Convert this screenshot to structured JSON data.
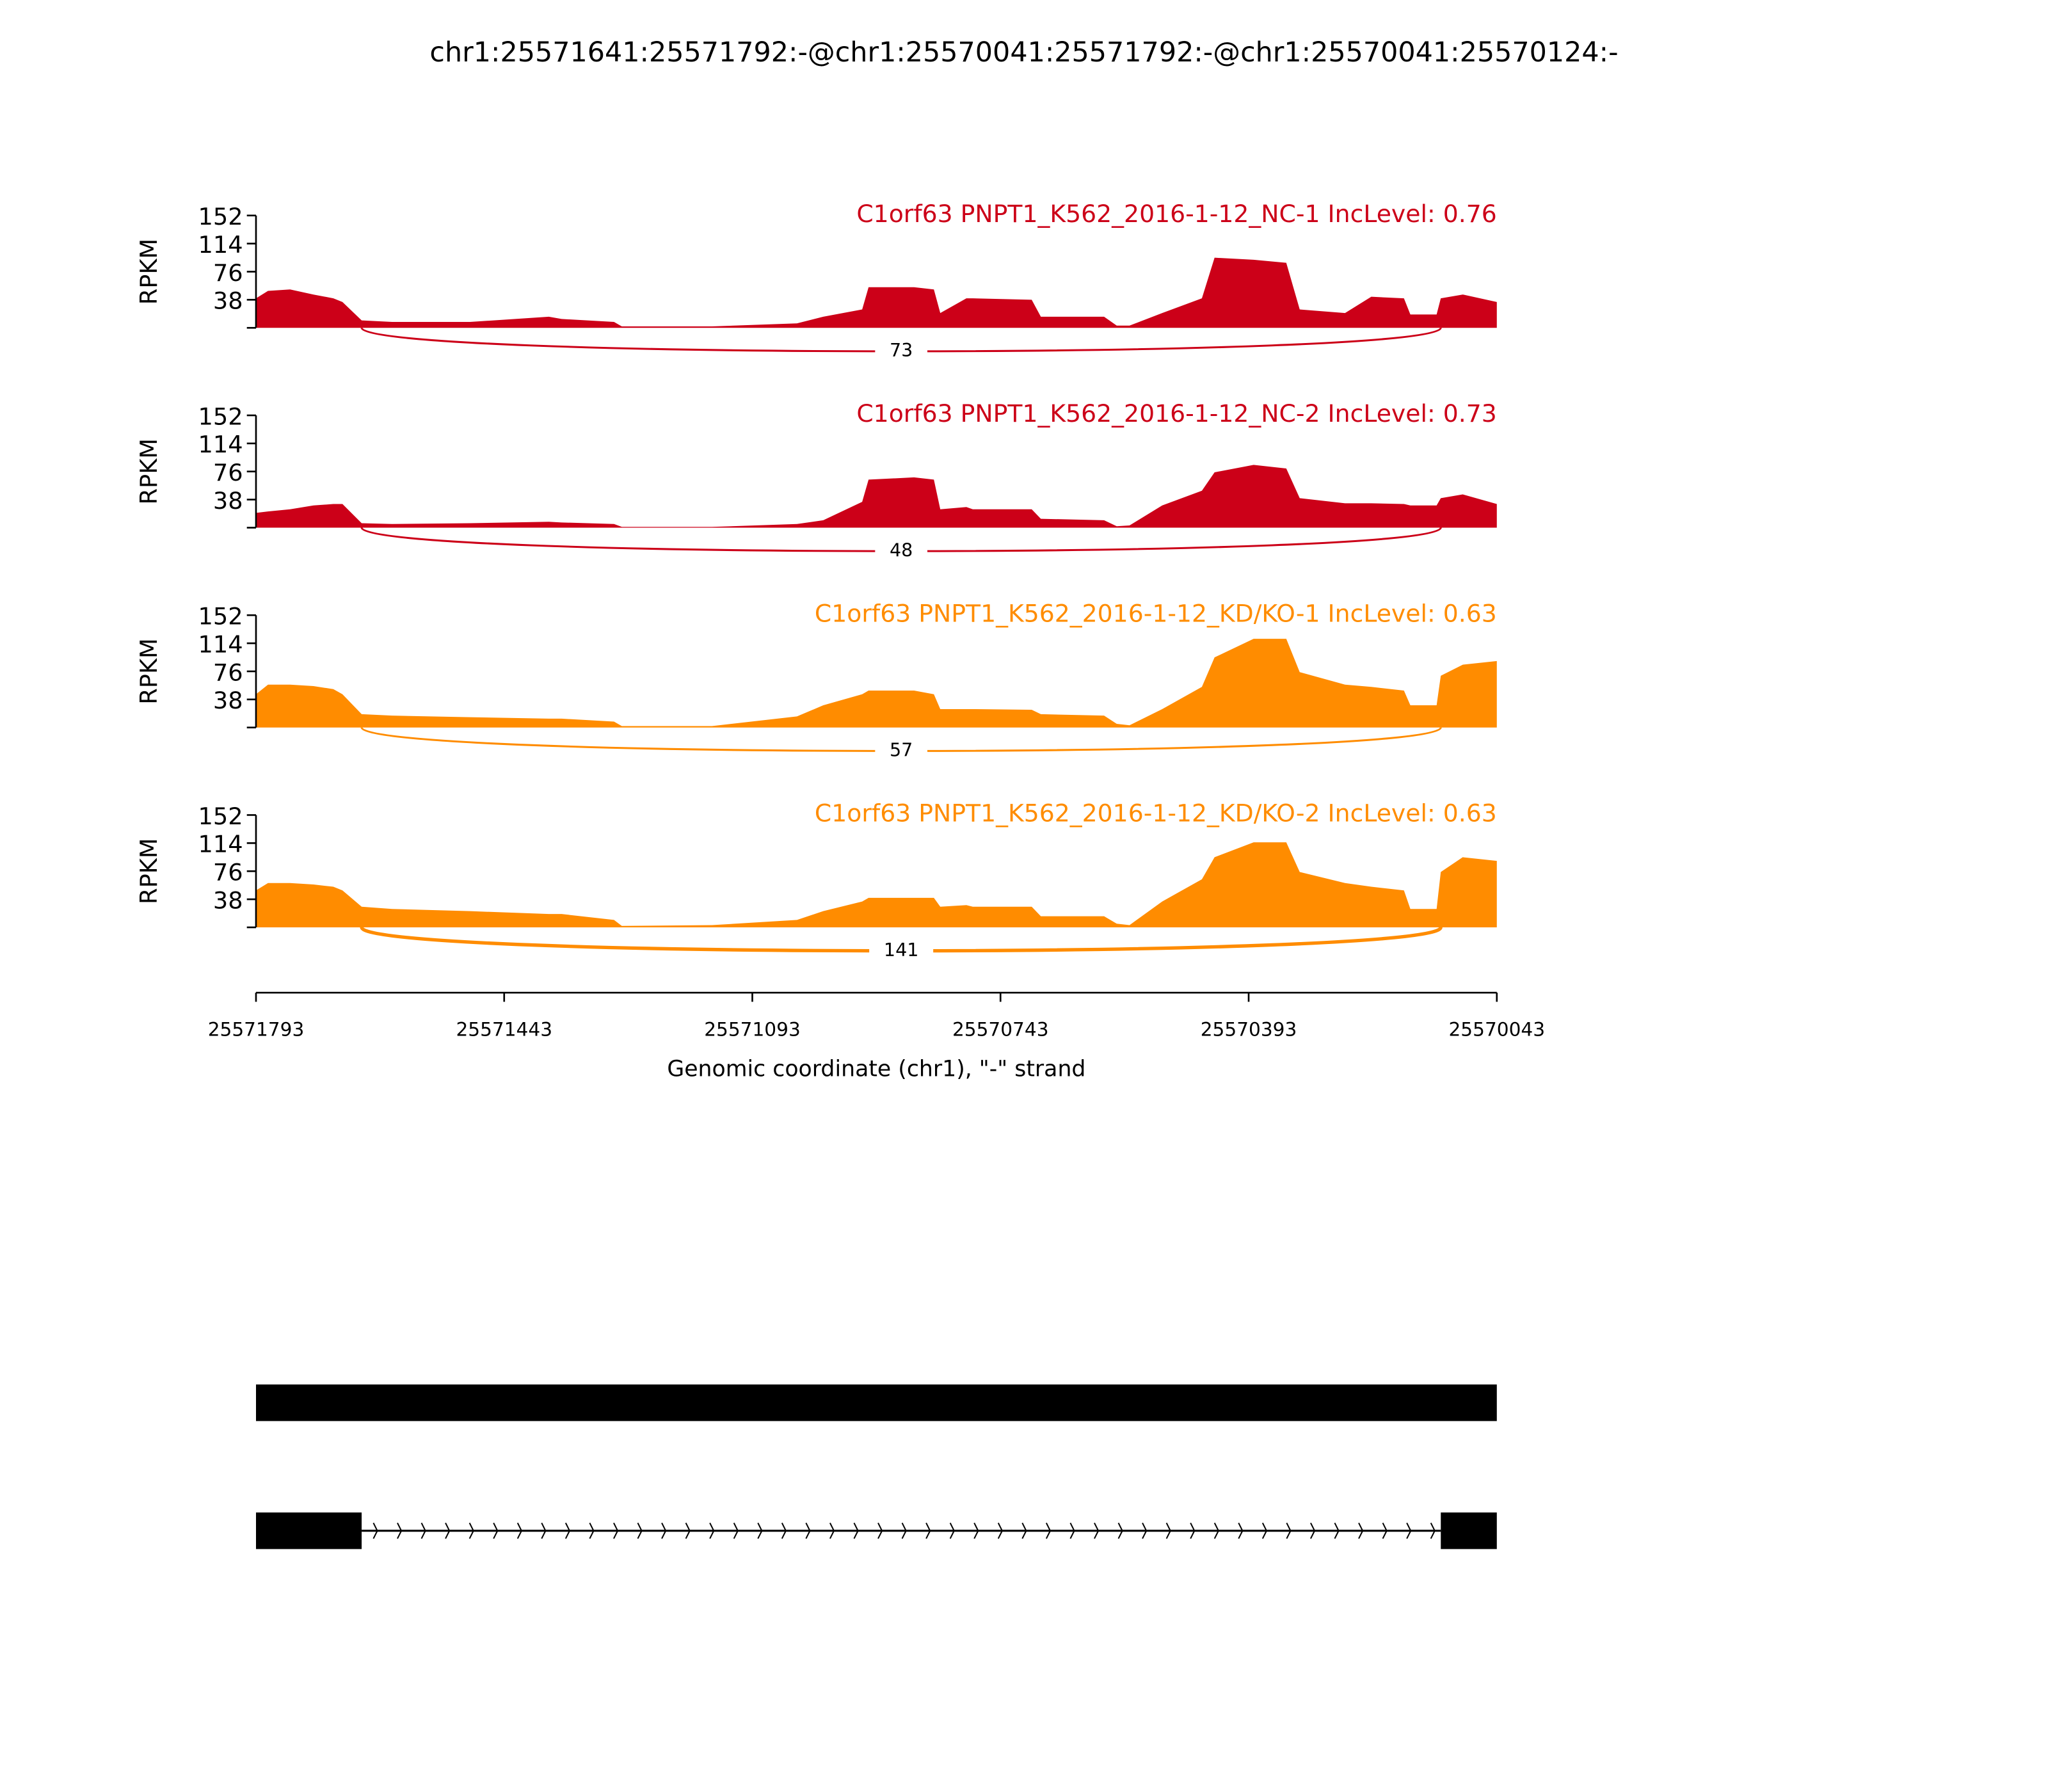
{
  "chart_data": {
    "type": "area",
    "title": "chr1:25571641:25571792:-@chr1:25570041:25571792:-@chr1:25570041:25570124:-",
    "xlabel": "Genomic coordinate (chr1), \"-\" strand",
    "ylabel": "RPKM",
    "xlim": [
      25571793,
      25570043
    ],
    "x_ticks": [
      "25571793",
      "25571443",
      "25571093",
      "25570743",
      "25570393",
      "25570043"
    ],
    "ylim": [
      0,
      152
    ],
    "y_ticks": [
      "152",
      "114",
      "76",
      "38"
    ],
    "x": [
      25571793,
      25571776,
      25571745,
      25571712,
      25571684,
      25571671,
      25571644,
      25571601,
      25571491,
      25571380,
      25571362,
      25571288,
      25571277,
      25571150,
      25571030,
      25570993,
      25570938,
      25570929,
      25570865,
      25570837,
      25570828,
      25570791,
      25570782,
      25570699,
      25570686,
      25570597,
      25570579,
      25570561,
      25570515,
      25570459,
      25570441,
      25570386,
      25570340,
      25570321,
      25570257,
      25570220,
      25570174,
      25570165,
      25570128,
      25570122,
      25570091,
      25570043
    ],
    "series": [
      {
        "name": "C1orf63 PNPT1_K562_2016-1-12_NC-1 IncLevel: 0.76",
        "color": "#CC0018",
        "values": [
          40,
          50,
          52,
          45,
          40,
          35,
          10,
          8,
          8,
          15,
          12,
          8,
          2,
          2,
          6,
          15,
          25,
          55,
          55,
          52,
          20,
          40,
          40,
          38,
          15,
          15,
          3,
          3,
          20,
          40,
          95,
          92,
          88,
          25,
          20,
          42,
          40,
          18,
          18,
          40,
          45,
          35
        ],
        "junction": {
          "from": 25571644,
          "to": 25570122,
          "count": "73"
        }
      },
      {
        "name": "C1orf63 PNPT1_K562_2016-1-12_NC-2 IncLevel: 0.73",
        "color": "#CC0018",
        "values": [
          20,
          22,
          25,
          30,
          32,
          32,
          6,
          5,
          6,
          8,
          7,
          5,
          1,
          1,
          5,
          10,
          35,
          65,
          68,
          65,
          25,
          28,
          25,
          25,
          12,
          10,
          2,
          3,
          30,
          50,
          75,
          85,
          80,
          40,
          33,
          33,
          32,
          30,
          30,
          40,
          45,
          32
        ],
        "junction": {
          "from": 25571644,
          "to": 25570122,
          "count": "48"
        }
      },
      {
        "name": "C1orf63 PNPT1_K562_2016-1-12_KD/KO-1 IncLevel: 0.63",
        "color": "#FF8C00",
        "values": [
          45,
          58,
          58,
          56,
          52,
          45,
          18,
          16,
          14,
          12,
          12,
          8,
          2,
          2,
          15,
          30,
          45,
          50,
          50,
          45,
          25,
          25,
          25,
          24,
          18,
          16,
          5,
          3,
          25,
          55,
          95,
          120,
          120,
          75,
          58,
          55,
          50,
          30,
          30,
          70,
          85,
          90
        ],
        "junction": {
          "from": 25571644,
          "to": 25570122,
          "count": "57"
        }
      },
      {
        "name": "C1orf63 PNPT1_K562_2016-1-12_KD/KO-2 IncLevel: 0.63",
        "color": "#FF8C00",
        "values": [
          50,
          60,
          60,
          58,
          55,
          50,
          28,
          25,
          22,
          18,
          18,
          10,
          2,
          3,
          10,
          22,
          35,
          40,
          40,
          40,
          28,
          30,
          28,
          28,
          15,
          15,
          5,
          3,
          35,
          65,
          95,
          115,
          115,
          75,
          60,
          55,
          50,
          25,
          25,
          75,
          95,
          90
        ],
        "junction": {
          "from": 25571644,
          "to": 25570122,
          "count": "141"
        }
      }
    ],
    "gene_models": [
      {
        "exons": [
          [
            25571793,
            25570043
          ]
        ]
      },
      {
        "exons": [
          [
            25571793,
            25571644
          ],
          [
            25570122,
            25570043
          ]
        ],
        "strand": "-"
      }
    ],
    "grid": false
  }
}
